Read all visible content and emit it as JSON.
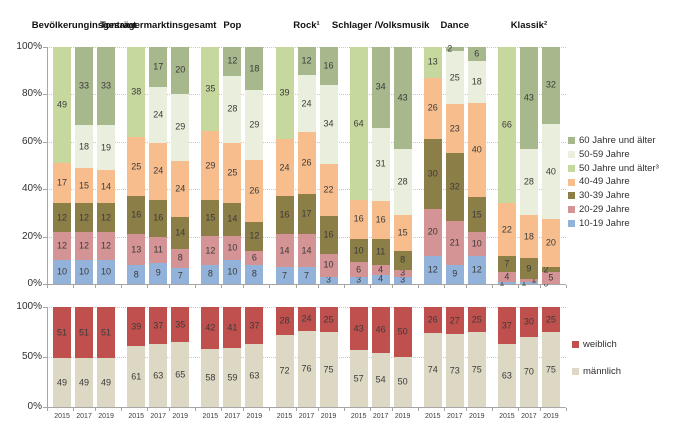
{
  "chart_data": [
    {
      "type": "bar",
      "variant": "stacked-100",
      "panel": "age-distribution",
      "unit": "%",
      "ylim": [
        0,
        100
      ],
      "y_ticks": [
        "100%",
        "80%",
        "60%",
        "40%",
        "20%",
        "0%"
      ],
      "grid": "dotted-horizontal",
      "legend_position": "right",
      "years": [
        "2015",
        "2017",
        "2019"
      ],
      "segments_bottom_to_top": [
        "10-19 Jahre",
        "20-29 Jahre",
        "30-39 Jahre",
        "40-49 Jahre",
        "50 Jahre und älter³",
        "50-59 Jahre",
        "60 Jahre und älter"
      ],
      "segment_colors_bottom_to_top": [
        "#93B2DA",
        "#D49394",
        "#8C7E47",
        "#F7BD8D",
        "#C7D89F",
        "#EAEEDC",
        "#A7B88C"
      ],
      "legend": [
        {
          "label": "60 Jahre und älter",
          "color": "#A7B88C"
        },
        {
          "label": "50-59 Jahre",
          "color": "#EAEEDC"
        },
        {
          "label": "50 Jahre und älter³",
          "color": "#C7D89F"
        },
        {
          "label": "40-49 Jahre",
          "color": "#F7BD8D"
        },
        {
          "label": "30-39 Jahre",
          "color": "#8C7E47"
        },
        {
          "label": "20-29 Jahre",
          "color": "#D49394"
        },
        {
          "label": "10-19 Jahre",
          "color": "#93B2DA"
        }
      ],
      "groups": [
        {
          "label": "Bevölkerung insgesamt",
          "label_lines": [
            "Bevölkerung",
            "insgesamt"
          ],
          "bars": [
            {
              "year": "2015",
              "values": [
                10,
                12,
                12,
                17,
                49,
                null,
                null
              ]
            },
            {
              "year": "2017",
              "values": [
                10,
                12,
                12,
                15,
                null,
                18,
                33
              ]
            },
            {
              "year": "2019",
              "values": [
                10,
                12,
                12,
                14,
                null,
                19,
                33
              ]
            }
          ]
        },
        {
          "label": "Tonträgermarkt insgesamt",
          "label_lines": [
            "Tonträgermarkt",
            "insgesamt"
          ],
          "bars": [
            {
              "year": "2015",
              "values": [
                8,
                13,
                16,
                25,
                38,
                null,
                null
              ]
            },
            {
              "year": "2017",
              "values": [
                9,
                11,
                16,
                24,
                null,
                24,
                17
              ]
            },
            {
              "year": "2019",
              "values": [
                7,
                8,
                14,
                24,
                null,
                29,
                20
              ]
            }
          ]
        },
        {
          "label": "Pop",
          "label_lines": [
            "Pop"
          ],
          "bars": [
            {
              "year": "2015",
              "values": [
                8,
                12,
                15,
                29,
                35,
                null,
                null
              ]
            },
            {
              "year": "2017",
              "values": [
                10,
                10,
                14,
                25,
                null,
                28,
                12
              ]
            },
            {
              "year": "2019",
              "values": [
                8,
                6,
                12,
                26,
                null,
                29,
                18
              ]
            }
          ]
        },
        {
          "label": "Rock¹",
          "label_lines": [
            "Rock¹"
          ],
          "bars": [
            {
              "year": "2015",
              "values": [
                7,
                14,
                16,
                24,
                39,
                null,
                null
              ]
            },
            {
              "year": "2017",
              "values": [
                7,
                14,
                17,
                26,
                null,
                24,
                12
              ]
            },
            {
              "year": "2019",
              "values": [
                3,
                10,
                16,
                22,
                null,
                34,
                16
              ]
            }
          ]
        },
        {
          "label": "Schlager / Volksmusik",
          "label_lines": [
            "Schlager /",
            "Volksmusik"
          ],
          "bars": [
            {
              "year": "2015",
              "values": [
                3,
                6,
                10,
                16,
                64,
                null,
                null
              ]
            },
            {
              "year": "2017",
              "values": [
                4,
                4,
                11,
                16,
                null,
                31,
                34
              ]
            },
            {
              "year": "2019",
              "values": [
                3,
                3,
                8,
                15,
                null,
                28,
                43
              ]
            }
          ]
        },
        {
          "label": "Dance",
          "label_lines": [
            "Dance"
          ],
          "bars": [
            {
              "year": "2015",
              "values": [
                12,
                20,
                30,
                26,
                13,
                null,
                null
              ]
            },
            {
              "year": "2017",
              "values": [
                9,
                21,
                32,
                23,
                null,
                25,
                2
              ]
            },
            {
              "year": "2019",
              "values": [
                12,
                10,
                15,
                40,
                null,
                18,
                6
              ]
            }
          ]
        },
        {
          "label": "Klassik²",
          "label_lines": [
            "Klassik²"
          ],
          "bars": [
            {
              "year": "2015",
              "values": [
                1,
                4,
                7,
                22,
                66,
                null,
                null
              ]
            },
            {
              "year": "2017",
              "values": [
                1,
                1,
                9,
                18,
                null,
                28,
                43
              ]
            },
            {
              "year": "2019",
              "values": [
                0,
                5,
                2,
                20,
                null,
                40,
                32
              ]
            }
          ]
        }
      ]
    },
    {
      "type": "bar",
      "variant": "stacked-100",
      "panel": "gender-distribution",
      "unit": "%",
      "ylim": [
        0,
        100
      ],
      "y_ticks": [
        "100%",
        "50%",
        "0%"
      ],
      "grid": "dotted-horizontal",
      "legend_position": "right",
      "years": [
        "2015",
        "2017",
        "2019"
      ],
      "segments_bottom_to_top": [
        "männlich",
        "weiblich"
      ],
      "segment_colors_bottom_to_top": [
        "#DCD8C4",
        "#C0504D"
      ],
      "legend": [
        {
          "label": "weiblich",
          "color": "#C0504D"
        },
        {
          "label": "männlich",
          "color": "#DCD8C4"
        }
      ],
      "groups": [
        {
          "label": "Bevölkerung insgesamt",
          "bars": [
            {
              "year": "2015",
              "values": [
                49,
                51
              ]
            },
            {
              "year": "2017",
              "values": [
                49,
                51
              ]
            },
            {
              "year": "2019",
              "values": [
                49,
                51
              ]
            }
          ]
        },
        {
          "label": "Tonträgermarkt insgesamt",
          "bars": [
            {
              "year": "2015",
              "values": [
                61,
                39
              ]
            },
            {
              "year": "2017",
              "values": [
                63,
                37
              ]
            },
            {
              "year": "2019",
              "values": [
                65,
                35
              ]
            }
          ]
        },
        {
          "label": "Pop",
          "bars": [
            {
              "year": "2015",
              "values": [
                58,
                42
              ]
            },
            {
              "year": "2017",
              "values": [
                59,
                41
              ]
            },
            {
              "year": "2019",
              "values": [
                63,
                37
              ]
            }
          ]
        },
        {
          "label": "Rock¹",
          "bars": [
            {
              "year": "2015",
              "values": [
                72,
                28
              ]
            },
            {
              "year": "2017",
              "values": [
                76,
                24
              ]
            },
            {
              "year": "2019",
              "values": [
                75,
                25
              ]
            }
          ]
        },
        {
          "label": "Schlager / Volksmusik",
          "bars": [
            {
              "year": "2015",
              "values": [
                57,
                43
              ]
            },
            {
              "year": "2017",
              "values": [
                54,
                46
              ]
            },
            {
              "year": "2019",
              "values": [
                50,
                50
              ]
            }
          ]
        },
        {
          "label": "Dance",
          "bars": [
            {
              "year": "2015",
              "values": [
                74,
                26
              ]
            },
            {
              "year": "2017",
              "values": [
                73,
                27
              ]
            },
            {
              "year": "2019",
              "values": [
                75,
                25
              ]
            }
          ]
        },
        {
          "label": "Klassik²",
          "bars": [
            {
              "year": "2015",
              "values": [
                63,
                37
              ]
            },
            {
              "year": "2017",
              "values": [
                70,
                30
              ]
            },
            {
              "year": "2019",
              "values": [
                75,
                25
              ]
            }
          ]
        }
      ]
    }
  ]
}
